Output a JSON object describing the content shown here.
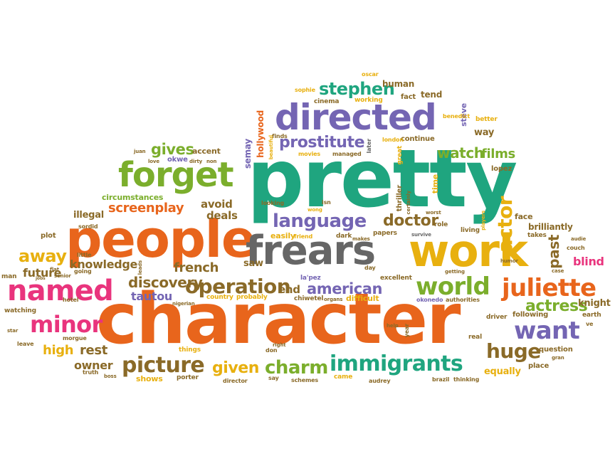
{
  "words": {
    "pretty": "pretty",
    "character": "character",
    "people": "people",
    "frears": "frears",
    "work": "work",
    "directed": "directed",
    "forget": "forget",
    "named": "named",
    "juliette": "juliette",
    "world": "world",
    "want": "want",
    "minor": "minor",
    "immigrants": "immigrants",
    "picture": "picture",
    "charm": "charm",
    "language": "language",
    "operation": "operation",
    "prostitute": "prostitute",
    "stephen": "stephen",
    "actor": "actor",
    "huge": "huge",
    "doctor": "doctor",
    "gives": "gives",
    "watch": "watch",
    "films": "films",
    "screenplay": "screenplay",
    "american": "american",
    "away": "away",
    "discovery": "discovery",
    "actress": "actress",
    "french": "french",
    "knowledge": "knowledge",
    "given": "given",
    "high": "high",
    "rest": "rest",
    "owner": "owner",
    "future": "future",
    "tautou": "tautou",
    "past": "past",
    "blind": "blind",
    "knight": "knight",
    "brilliantly": "brilliantly",
    "circumstances": "circumstances",
    "illegal": "illegal",
    "avoid": "avoid",
    "deals": "deals",
    "end": "end",
    "equally": "equally",
    "human": "human",
    "tend": "tend",
    "fact": "fact",
    "cinema": "cinema",
    "working": "working",
    "oscar": "oscar",
    "sophie": "sophie",
    "steve": "steve",
    "way": "way",
    "better": "better",
    "benedict": "benedict",
    "continue": "continue",
    "london": "london",
    "later": "later",
    "great": "great",
    "managed": "managed",
    "finds": "finds",
    "movies": "movies",
    "hollywood": "hollywood",
    "beautiful": "beautiful",
    "semay": "semay",
    "accent": "accent",
    "okwe": "okwe",
    "dirty": "dirty",
    "non": "non",
    "love": "love",
    "juan": "juan",
    "lopez": "lopez",
    "time": "time",
    "thriller": "thriller",
    "certainly": "certainly",
    "isn": "isn",
    "looking": "looking",
    "wong": "wong",
    "easily": "easily",
    "friend": "friend",
    "dark": "dark",
    "makes": "makes",
    "papers": "papers",
    "survive": "survive",
    "role": "role",
    "living": "living",
    "players": "players",
    "worst": "worst",
    "face": "face",
    "takes": "takes",
    "audie": "audie",
    "couch": "couch",
    "humor": "humor",
    "case": "case",
    "getting": "getting",
    "day": "day",
    "excellent": "excellent",
    "saw": "saw",
    "la_pez": "la'pez",
    "country": "country",
    "probably": "probably",
    "nigerian": "nigerian",
    "hotel": "hotel",
    "watching": "watching",
    "morgue": "morgue",
    "star": "star",
    "leave": "leave",
    "things": "things",
    "right": "right",
    "don": "don",
    "help": "help",
    "year": "year",
    "real": "real",
    "question": "question",
    "place": "place",
    "gran": "gran",
    "driver": "driver",
    "following": "following",
    "earth": "earth",
    "ve": "ve",
    "chiwetel": "chiwetel",
    "organs": "organs",
    "difficult": "difficult",
    "okonedo": "okonedo",
    "authorities": "authorities",
    "brazil": "brazil",
    "thinking": "thinking",
    "audrey": "audrey",
    "came": "came",
    "schemes": "schemes",
    "say": "say",
    "director": "director",
    "porter": "porter",
    "shows": "shows",
    "boss": "boss",
    "truth": "truth",
    "senior": "senior",
    "jobs": "jobs",
    "flat": "flat",
    "plot": "plot",
    "sordid": "sordid",
    "man": "man",
    "little": "little",
    "going": "going",
    "leads": "leads"
  }
}
